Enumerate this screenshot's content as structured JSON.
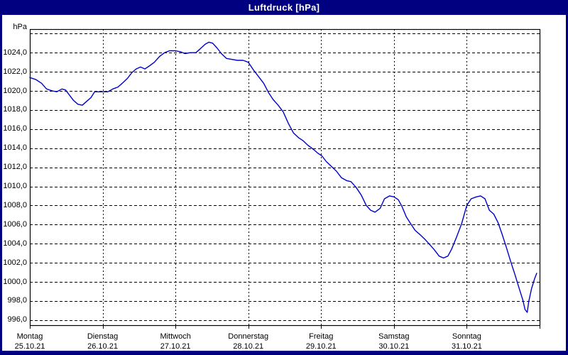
{
  "window": {
    "title": "Luftdruck [hPa]"
  },
  "colors": {
    "frame": "#000080",
    "title_text": "#ffffff",
    "background": "#ffffff",
    "grid": "#000000",
    "axis": "#000000",
    "line": "#0000c8",
    "label_text": "#000000"
  },
  "y_axis": {
    "unit": "hPa",
    "ticks": [
      {
        "value": 1026,
        "label": ""
      },
      {
        "value": 1024,
        "label": "1024,0"
      },
      {
        "value": 1022,
        "label": "1022,0"
      },
      {
        "value": 1020,
        "label": "1020,0"
      },
      {
        "value": 1018,
        "label": "1018,0"
      },
      {
        "value": 1016,
        "label": "1016,0"
      },
      {
        "value": 1014,
        "label": "1014,0"
      },
      {
        "value": 1012,
        "label": "1012,0"
      },
      {
        "value": 1010,
        "label": "1010,0"
      },
      {
        "value": 1008,
        "label": "1008,0"
      },
      {
        "value": 1006,
        "label": "1006,0"
      },
      {
        "value": 1004,
        "label": "1004,0"
      },
      {
        "value": 1002,
        "label": "1002,0"
      },
      {
        "value": 1000,
        "label": "1000,0"
      },
      {
        "value": 998,
        "label": "998,0"
      },
      {
        "value": 996,
        "label": "996,0"
      }
    ]
  },
  "x_axis": {
    "days": [
      {
        "name": "Montag",
        "date": "25.10.21"
      },
      {
        "name": "Dienstag",
        "date": "26.10.21"
      },
      {
        "name": "Mittwoch",
        "date": "27.10.21"
      },
      {
        "name": "Donnerstag",
        "date": "28.10.21"
      },
      {
        "name": "Freitag",
        "date": "29.10.21"
      },
      {
        "name": "Samstag",
        "date": "30.10.21"
      },
      {
        "name": "Sonntag",
        "date": "31.10.21"
      }
    ]
  },
  "chart_data": {
    "type": "line",
    "title": "Luftdruck [hPa]",
    "xlabel": "",
    "ylabel": "hPa",
    "ylim": [
      995.5,
      1026.5
    ],
    "y_grid_step": 2,
    "x_days": 7,
    "categories": [
      "Montag 25.10.21",
      "Dienstag 26.10.21",
      "Mittwoch 27.10.21",
      "Donnerstag 28.10.21",
      "Freitag 29.10.21",
      "Samstag 30.10.21",
      "Sonntag 31.10.21"
    ],
    "grid": true,
    "legend": false,
    "series": [
      {
        "name": "Luftdruck",
        "unit": "hPa",
        "points": [
          [
            0.0,
            1021.4
          ],
          [
            0.08,
            1021.2
          ],
          [
            0.16,
            1020.8
          ],
          [
            0.23,
            1020.2
          ],
          [
            0.31,
            1020.0
          ],
          [
            0.37,
            1019.9
          ],
          [
            0.44,
            1020.2
          ],
          [
            0.49,
            1020.1
          ],
          [
            0.54,
            1019.6
          ],
          [
            0.6,
            1019.0
          ],
          [
            0.66,
            1018.6
          ],
          [
            0.72,
            1018.5
          ],
          [
            0.78,
            1018.9
          ],
          [
            0.84,
            1019.3
          ],
          [
            0.89,
            1019.9
          ],
          [
            0.95,
            1019.9
          ],
          [
            1.0,
            1019.9
          ],
          [
            1.07,
            1019.9
          ],
          [
            1.14,
            1020.2
          ],
          [
            1.21,
            1020.4
          ],
          [
            1.27,
            1020.8
          ],
          [
            1.34,
            1021.3
          ],
          [
            1.4,
            1021.9
          ],
          [
            1.46,
            1022.3
          ],
          [
            1.52,
            1022.5
          ],
          [
            1.58,
            1022.3
          ],
          [
            1.64,
            1022.6
          ],
          [
            1.71,
            1023.0
          ],
          [
            1.78,
            1023.6
          ],
          [
            1.85,
            1024.0
          ],
          [
            1.92,
            1024.2
          ],
          [
            2.0,
            1024.2
          ],
          [
            2.07,
            1024.1
          ],
          [
            2.13,
            1023.9
          ],
          [
            2.2,
            1024.0
          ],
          [
            2.28,
            1024.0
          ],
          [
            2.34,
            1024.4
          ],
          [
            2.41,
            1024.9
          ],
          [
            2.46,
            1025.1
          ],
          [
            2.51,
            1025.0
          ],
          [
            2.57,
            1024.5
          ],
          [
            2.63,
            1023.9
          ],
          [
            2.7,
            1023.4
          ],
          [
            2.77,
            1023.3
          ],
          [
            2.85,
            1023.2
          ],
          [
            2.93,
            1023.2
          ],
          [
            3.0,
            1023.0
          ],
          [
            3.07,
            1022.2
          ],
          [
            3.14,
            1021.5
          ],
          [
            3.21,
            1020.8
          ],
          [
            3.28,
            1019.8
          ],
          [
            3.34,
            1019.1
          ],
          [
            3.41,
            1018.5
          ],
          [
            3.48,
            1017.8
          ],
          [
            3.55,
            1016.6
          ],
          [
            3.62,
            1015.6
          ],
          [
            3.69,
            1015.1
          ],
          [
            3.75,
            1014.8
          ],
          [
            3.82,
            1014.3
          ],
          [
            3.89,
            1013.9
          ],
          [
            3.95,
            1013.5
          ],
          [
            4.01,
            1013.2
          ],
          [
            4.07,
            1012.6
          ],
          [
            4.14,
            1012.1
          ],
          [
            4.21,
            1011.6
          ],
          [
            4.28,
            1010.9
          ],
          [
            4.35,
            1010.6
          ],
          [
            4.41,
            1010.5
          ],
          [
            4.48,
            1009.9
          ],
          [
            4.55,
            1009.1
          ],
          [
            4.62,
            1008.0
          ],
          [
            4.68,
            1007.5
          ],
          [
            4.74,
            1007.3
          ],
          [
            4.81,
            1007.7
          ],
          [
            4.87,
            1008.7
          ],
          [
            4.94,
            1009.0
          ],
          [
            5.0,
            1008.9
          ],
          [
            5.06,
            1008.6
          ],
          [
            5.11,
            1007.9
          ],
          [
            5.17,
            1006.8
          ],
          [
            5.23,
            1006.1
          ],
          [
            5.29,
            1005.4
          ],
          [
            5.35,
            1005.0
          ],
          [
            5.42,
            1004.5
          ],
          [
            5.48,
            1004.0
          ],
          [
            5.55,
            1003.4
          ],
          [
            5.62,
            1002.7
          ],
          [
            5.68,
            1002.5
          ],
          [
            5.74,
            1002.7
          ],
          [
            5.79,
            1003.4
          ],
          [
            5.86,
            1004.7
          ],
          [
            5.93,
            1006.1
          ],
          [
            6.0,
            1008.0
          ],
          [
            6.06,
            1008.7
          ],
          [
            6.13,
            1008.9
          ],
          [
            6.19,
            1009.0
          ],
          [
            6.25,
            1008.7
          ],
          [
            6.31,
            1007.5
          ],
          [
            6.37,
            1007.1
          ],
          [
            6.43,
            1006.2
          ],
          [
            6.48,
            1005.1
          ],
          [
            6.54,
            1003.7
          ],
          [
            6.6,
            1002.2
          ],
          [
            6.66,
            1000.8
          ],
          [
            6.72,
            999.3
          ],
          [
            6.77,
            998.1
          ],
          [
            6.8,
            997.1
          ],
          [
            6.83,
            996.8
          ],
          [
            6.85,
            997.9
          ],
          [
            6.89,
            999.3
          ],
          [
            6.93,
            1000.3
          ],
          [
            6.96,
            1000.9
          ]
        ]
      }
    ]
  }
}
